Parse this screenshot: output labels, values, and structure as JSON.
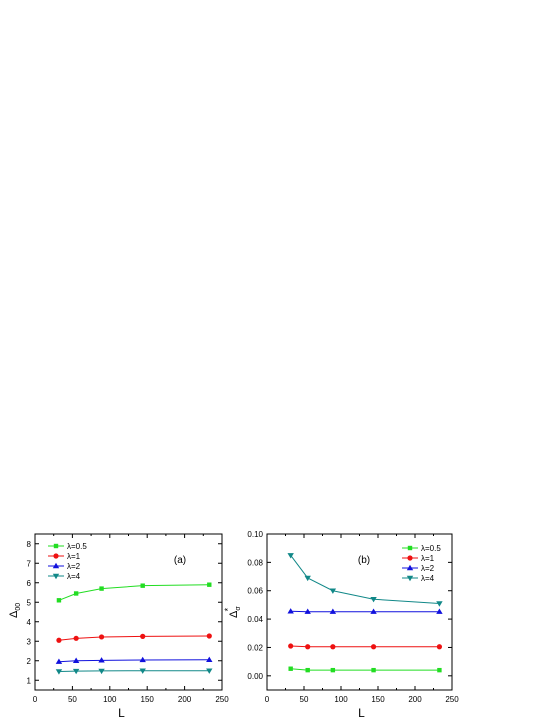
{
  "chart_data": [
    {
      "type": "line",
      "panel_label": "(a)",
      "xlabel": "L",
      "ylabel_main": "Δ",
      "ylabel_sub": "00",
      "xlim": [
        0,
        250
      ],
      "ylim": [
        0.5,
        8.5
      ],
      "xticks": [
        0,
        50,
        100,
        150,
        200,
        250
      ],
      "yticks": [
        1,
        2,
        3,
        4,
        5,
        6,
        7,
        8
      ],
      "x": [
        32,
        55,
        89,
        144,
        233
      ],
      "legend_position": "top-left",
      "series": [
        {
          "name": "λ=0.5",
          "marker": "square",
          "color": "#22dd22",
          "values": [
            5.1,
            5.45,
            5.7,
            5.85,
            5.9
          ]
        },
        {
          "name": "λ=1",
          "marker": "circle",
          "color": "#ee1111",
          "values": [
            3.05,
            3.15,
            3.22,
            3.25,
            3.27
          ]
        },
        {
          "name": "λ=2",
          "marker": "triangle-up",
          "color": "#1111dd",
          "values": [
            1.95,
            2.0,
            2.02,
            2.04,
            2.05
          ]
        },
        {
          "name": "λ=4",
          "marker": "triangle-down",
          "color": "#118888",
          "values": [
            1.45,
            1.47,
            1.48,
            1.49,
            1.49
          ]
        }
      ]
    },
    {
      "type": "line",
      "panel_label": "(b)",
      "xlabel": "L",
      "ylabel_main": "Δ",
      "ylabel_sub": "σ",
      "ylabel_sup": "*",
      "xlim": [
        0,
        250
      ],
      "ylim": [
        -0.01,
        0.1
      ],
      "xticks": [
        0,
        50,
        100,
        150,
        200,
        250
      ],
      "yticks": [
        "0.00",
        "0.02",
        "0.04",
        "0.06",
        "0.08",
        "0.10"
      ],
      "x": [
        32,
        55,
        89,
        144,
        233
      ],
      "legend_position": "top-right",
      "series": [
        {
          "name": "λ=0.5",
          "marker": "square",
          "color": "#22dd22",
          "values": [
            0.005,
            0.004,
            0.004,
            0.004,
            0.004
          ]
        },
        {
          "name": "λ=1",
          "marker": "circle",
          "color": "#ee1111",
          "values": [
            0.021,
            0.0205,
            0.0205,
            0.0205,
            0.0205
          ]
        },
        {
          "name": "λ=2",
          "marker": "triangle-up",
          "color": "#1111dd",
          "values": [
            0.0455,
            0.0452,
            0.0452,
            0.0452,
            0.0452
          ]
        },
        {
          "name": "λ=4",
          "marker": "triangle-down",
          "color": "#118888",
          "values": [
            0.085,
            0.069,
            0.06,
            0.054,
            0.051
          ]
        }
      ]
    }
  ]
}
